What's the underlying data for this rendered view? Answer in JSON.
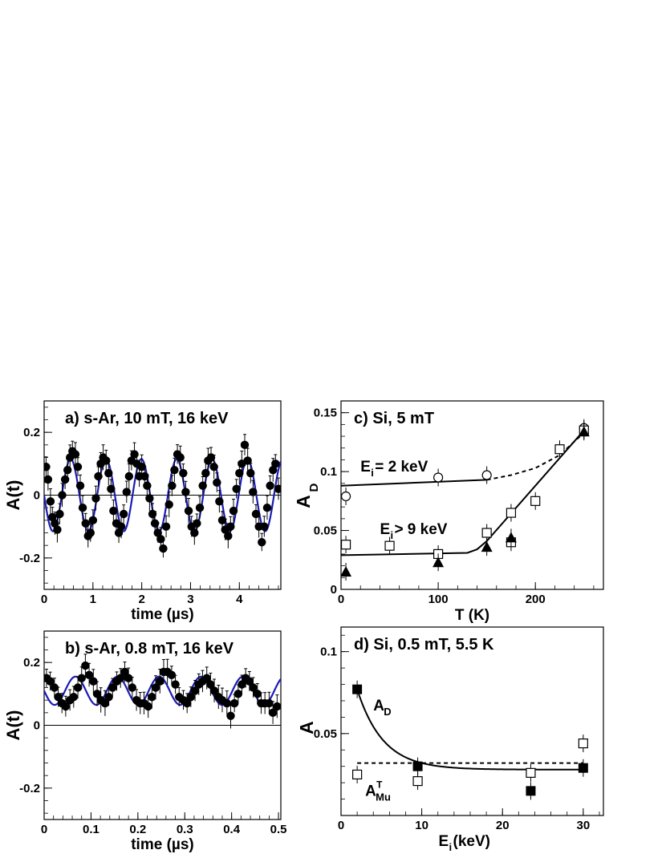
{
  "chart_data": [
    {
      "id": "a",
      "type": "scatter",
      "title": "a) s-Ar, 10 mT, 16 keV",
      "xlabel": "time (µs)",
      "ylabel": "A(t)",
      "xlim": [
        0,
        4.85
      ],
      "ylim": [
        -0.3,
        0.3
      ],
      "xticks": [
        "0",
        "1",
        "2",
        "3",
        "4"
      ],
      "yticks": [
        "-0.2",
        "0",
        "0.2"
      ],
      "fit": {
        "amplitude": 0.115,
        "frequency_mhz": 1.38,
        "phase_deg": 90,
        "offset": 0.0,
        "color": "#1a1ab4"
      },
      "points": [
        [
          0.04,
          0.09
        ],
        [
          0.08,
          0.05
        ],
        [
          0.13,
          -0.02
        ],
        [
          0.17,
          -0.07
        ],
        [
          0.22,
          -0.09
        ],
        [
          0.27,
          -0.11
        ],
        [
          0.32,
          -0.06
        ],
        [
          0.37,
          0.0
        ],
        [
          0.43,
          0.05
        ],
        [
          0.48,
          0.08
        ],
        [
          0.53,
          0.12
        ],
        [
          0.58,
          0.14
        ],
        [
          0.64,
          0.13
        ],
        [
          0.69,
          0.09
        ],
        [
          0.74,
          0.03
        ],
        [
          0.79,
          -0.04
        ],
        [
          0.85,
          -0.09
        ],
        [
          0.9,
          -0.13
        ],
        [
          0.95,
          -0.12
        ],
        [
          1.0,
          -0.08
        ],
        [
          1.06,
          -0.01
        ],
        [
          1.11,
          0.06
        ],
        [
          1.16,
          0.1
        ],
        [
          1.21,
          0.12
        ],
        [
          1.27,
          0.11
        ],
        [
          1.32,
          0.07
        ],
        [
          1.37,
          0.02
        ],
        [
          1.42,
          -0.05
        ],
        [
          1.48,
          -0.09
        ],
        [
          1.53,
          -0.12
        ],
        [
          1.58,
          -0.1
        ],
        [
          1.63,
          -0.06
        ],
        [
          1.69,
          0.01
        ],
        [
          1.74,
          0.06
        ],
        [
          1.79,
          0.11
        ],
        [
          1.85,
          0.13
        ],
        [
          1.9,
          0.1
        ],
        [
          1.95,
          0.06
        ],
        [
          2.0,
          0.09
        ],
        [
          2.06,
          0.06
        ],
        [
          2.11,
          0.03
        ],
        [
          2.16,
          -0.01
        ],
        [
          2.22,
          -0.06
        ],
        [
          2.27,
          -0.09
        ],
        [
          2.33,
          -0.12
        ],
        [
          2.39,
          -0.14
        ],
        [
          2.44,
          -0.17
        ],
        [
          2.5,
          -0.1
        ],
        [
          2.56,
          -0.03
        ],
        [
          2.62,
          0.03
        ],
        [
          2.67,
          0.08
        ],
        [
          2.73,
          0.13
        ],
        [
          2.79,
          0.12
        ],
        [
          2.85,
          0.07
        ],
        [
          2.9,
          0.01
        ],
        [
          2.96,
          -0.05
        ],
        [
          3.02,
          -0.1
        ],
        [
          3.08,
          -0.12
        ],
        [
          3.13,
          -0.09
        ],
        [
          3.19,
          -0.04
        ],
        [
          3.25,
          0.03
        ],
        [
          3.31,
          0.07
        ],
        [
          3.36,
          0.11
        ],
        [
          3.42,
          0.12
        ],
        [
          3.48,
          0.09
        ],
        [
          3.54,
          0.04
        ],
        [
          3.59,
          -0.02
        ],
        [
          3.65,
          -0.08
        ],
        [
          3.71,
          -0.11
        ],
        [
          3.77,
          -0.13
        ],
        [
          3.82,
          -0.1
        ],
        [
          3.88,
          -0.05
        ],
        [
          3.94,
          0.02
        ],
        [
          4.0,
          0.07
        ],
        [
          4.05,
          0.1
        ],
        [
          4.11,
          0.16
        ],
        [
          4.17,
          0.11
        ],
        [
          4.23,
          0.07
        ],
        [
          4.28,
          0.01
        ],
        [
          4.34,
          -0.06
        ],
        [
          4.4,
          -0.1
        ],
        [
          4.46,
          -0.15
        ],
        [
          4.51,
          -0.1
        ],
        [
          4.57,
          -0.04
        ],
        [
          4.63,
          0.03
        ],
        [
          4.69,
          0.08
        ],
        [
          4.74,
          0.1
        ],
        [
          4.8,
          0.02
        ]
      ]
    },
    {
      "id": "b",
      "type": "scatter",
      "title": "b) s-Ar, 0.8 mT, 16 keV",
      "xlabel": "time (µs)",
      "ylabel": "A(t)",
      "xlim": [
        0,
        0.505
      ],
      "ylim": [
        -0.3,
        0.3
      ],
      "xticks": [
        "0",
        "0.1",
        "0.2",
        "0.3",
        "0.4",
        "0.5"
      ],
      "yticks": [
        "-0.2",
        "0",
        "0.2"
      ],
      "fit": {
        "amplitude": 0.045,
        "frequency_mhz": 11.2,
        "phase_deg": 90,
        "offset": 0.11,
        "color": "#1a1ab4"
      },
      "points": [
        [
          0.005,
          0.15
        ],
        [
          0.013,
          0.14
        ],
        [
          0.022,
          0.12
        ],
        [
          0.03,
          0.09
        ],
        [
          0.038,
          0.07
        ],
        [
          0.046,
          0.06
        ],
        [
          0.055,
          0.08
        ],
        [
          0.063,
          0.09
        ],
        [
          0.072,
          0.12
        ],
        [
          0.08,
          0.15
        ],
        [
          0.088,
          0.19
        ],
        [
          0.096,
          0.16
        ],
        [
          0.105,
          0.14
        ],
        [
          0.113,
          0.1
        ],
        [
          0.121,
          0.08
        ],
        [
          0.13,
          0.07
        ],
        [
          0.138,
          0.09
        ],
        [
          0.146,
          0.12
        ],
        [
          0.155,
          0.14
        ],
        [
          0.163,
          0.15
        ],
        [
          0.172,
          0.17
        ],
        [
          0.18,
          0.15
        ],
        [
          0.188,
          0.12
        ],
        [
          0.197,
          0.08
        ],
        [
          0.205,
          0.07
        ],
        [
          0.213,
          0.07
        ],
        [
          0.222,
          0.06
        ],
        [
          0.23,
          0.09
        ],
        [
          0.238,
          0.12
        ],
        [
          0.247,
          0.14
        ],
        [
          0.255,
          0.17
        ],
        [
          0.263,
          0.17
        ],
        [
          0.272,
          0.16
        ],
        [
          0.28,
          0.13
        ],
        [
          0.288,
          0.09
        ],
        [
          0.297,
          0.08
        ],
        [
          0.305,
          0.07
        ],
        [
          0.313,
          0.09
        ],
        [
          0.322,
          0.11
        ],
        [
          0.33,
          0.13
        ],
        [
          0.338,
          0.14
        ],
        [
          0.347,
          0.15
        ],
        [
          0.355,
          0.13
        ],
        [
          0.363,
          0.11
        ],
        [
          0.372,
          0.09
        ],
        [
          0.38,
          0.08
        ],
        [
          0.39,
          0.07
        ],
        [
          0.398,
          0.03
        ],
        [
          0.406,
          0.07
        ],
        [
          0.414,
          0.1
        ],
        [
          0.422,
          0.13
        ],
        [
          0.43,
          0.15
        ],
        [
          0.438,
          0.14
        ],
        [
          0.446,
          0.12
        ],
        [
          0.455,
          0.1
        ],
        [
          0.463,
          0.07
        ],
        [
          0.471,
          0.07
        ],
        [
          0.48,
          0.07
        ],
        [
          0.488,
          0.04
        ],
        [
          0.497,
          0.06
        ]
      ]
    },
    {
      "id": "c",
      "type": "scatter",
      "title": "c) Si, 5 mT",
      "xlabel": "T (K)",
      "ylabel": "A",
      "ylabel_sub": "D",
      "xlim": [
        0,
        270
      ],
      "ylim": [
        0,
        0.16
      ],
      "xticks": [
        "0",
        "100",
        "200"
      ],
      "yticks": [
        "0",
        "0.05",
        "0.1",
        "0.15"
      ],
      "annotations": [
        {
          "main": "E",
          "sub": "i",
          "rest": " = 2 keV",
          "x": 20,
          "y": 0.1
        },
        {
          "main": "E",
          "sub": "i",
          "rest": " > 9 keV",
          "x": 40,
          "y": 0.047
        }
      ],
      "series": [
        {
          "marker": "open-circle",
          "points": [
            [
              5,
              0.079
            ],
            [
              100,
              0.095
            ],
            [
              150,
              0.097
            ],
            [
              250,
              0.137
            ]
          ]
        },
        {
          "marker": "open-square",
          "points": [
            [
              5,
              0.038
            ],
            [
              50,
              0.037
            ],
            [
              100,
              0.03
            ],
            [
              150,
              0.048
            ],
            [
              175,
              0.065
            ],
            [
              175,
              0.04
            ],
            [
              200,
              0.075
            ],
            [
              225,
              0.119
            ],
            [
              250,
              0.135
            ]
          ]
        },
        {
          "marker": "filled-triangle",
          "points": [
            [
              5,
              0.015
            ],
            [
              100,
              0.023
            ],
            [
              150,
              0.036
            ],
            [
              175,
              0.044
            ],
            [
              250,
              0.134
            ]
          ]
        }
      ],
      "lines": [
        {
          "style": "solid",
          "points": [
            [
              0,
              0.088
            ],
            [
              150,
              0.093
            ]
          ]
        },
        {
          "style": "dashed",
          "points": [
            [
              150,
              0.093
            ],
            [
              175,
              0.097
            ],
            [
              200,
              0.103
            ],
            [
              225,
              0.114
            ],
            [
              250,
              0.133
            ]
          ]
        },
        {
          "style": "solid",
          "points": [
            [
              0,
              0.029
            ],
            [
              130,
              0.031
            ],
            [
              140,
              0.034
            ],
            [
              150,
              0.041
            ],
            [
              250,
              0.135
            ]
          ]
        }
      ]
    },
    {
      "id": "d",
      "type": "scatter",
      "title": "d) Si, 0.5 mT, 5.5 K",
      "xlabel": "E",
      "xlabel_sub": "i",
      "xlabel_rest": " (keV)",
      "ylabel": "A",
      "xlim": [
        0,
        32.5
      ],
      "ylim": [
        0,
        0.115
      ],
      "xticks": [
        "0",
        "10",
        "20",
        "30"
      ],
      "yticks": [
        "0.05",
        "0.1"
      ],
      "annotations": [
        {
          "main": "A",
          "sub": "D",
          "sup": "",
          "x": 4,
          "y": 0.064
        },
        {
          "main": "A",
          "sub": "Mu",
          "sup": "T",
          "x": 3,
          "y": 0.012
        }
      ],
      "series": [
        {
          "marker": "filled-square",
          "points": [
            [
              2,
              0.077
            ],
            [
              9.5,
              0.03
            ],
            [
              23.5,
              0.015
            ],
            [
              30,
              0.029
            ]
          ]
        },
        {
          "marker": "open-square",
          "points": [
            [
              2,
              0.025
            ],
            [
              9.5,
              0.021
            ],
            [
              23.5,
              0.026
            ],
            [
              30,
              0.044
            ]
          ]
        }
      ],
      "lines": [
        {
          "style": "solid",
          "kind": "exp",
          "from": 2,
          "to": 30,
          "base": 0.028,
          "amp": 0.049,
          "decay": 3.2
        },
        {
          "style": "dashed",
          "points": [
            [
              2,
              0.032
            ],
            [
              30,
              0.032
            ]
          ]
        }
      ]
    }
  ]
}
